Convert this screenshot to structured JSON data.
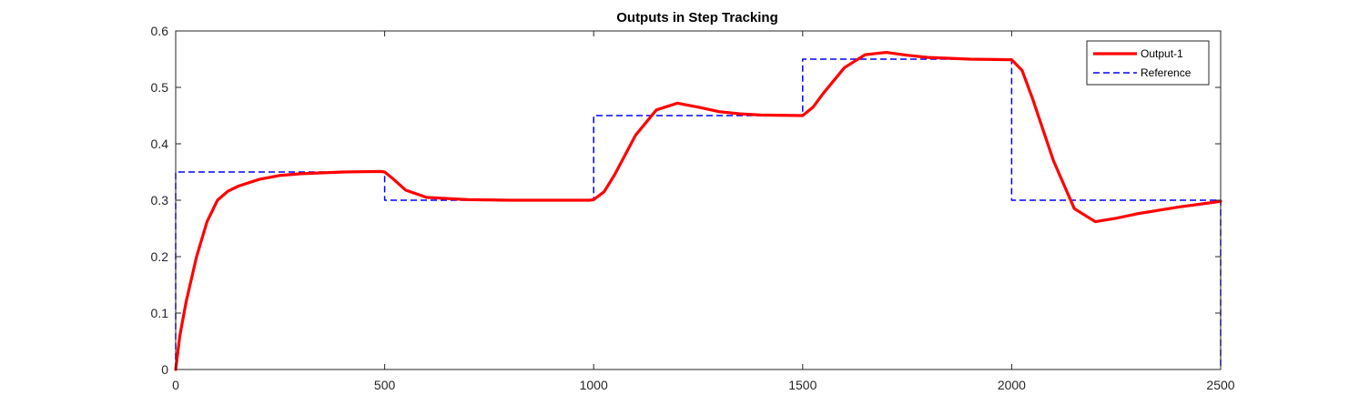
{
  "chart_data": {
    "type": "line",
    "title": "Outputs in Step Tracking",
    "xlabel": "",
    "ylabel": "",
    "xlim": [
      0,
      2500
    ],
    "ylim": [
      0,
      0.6
    ],
    "xticks": [
      0,
      500,
      1000,
      1500,
      2000,
      2500
    ],
    "xtick_labels": [
      "0",
      "500",
      "1000",
      "1500",
      "2000",
      "2500"
    ],
    "yticks": [
      0,
      0.1,
      0.2,
      0.3,
      0.4,
      0.5,
      0.6
    ],
    "ytick_labels": [
      "0",
      "0.1",
      "0.2",
      "0.3",
      "0.4",
      "0.5",
      "0.6"
    ],
    "grid": false,
    "legend_position": "top-right",
    "series": [
      {
        "name": "Output-1",
        "color": "#ff0000",
        "style": "solid",
        "x": [
          0,
          10,
          25,
          50,
          75,
          100,
          125,
          150,
          200,
          250,
          300,
          400,
          490,
          500,
          520,
          550,
          600,
          700,
          800,
          900,
          990,
          1000,
          1025,
          1050,
          1100,
          1150,
          1200,
          1250,
          1300,
          1350,
          1400,
          1500,
          1525,
          1550,
          1600,
          1650,
          1700,
          1750,
          1800,
          1900,
          2000,
          2025,
          2050,
          2100,
          2150,
          2200,
          2250,
          2300,
          2400,
          2500
        ],
        "y": [
          0,
          0.06,
          0.12,
          0.2,
          0.262,
          0.3,
          0.316,
          0.325,
          0.337,
          0.344,
          0.347,
          0.35,
          0.351,
          0.35,
          0.338,
          0.318,
          0.305,
          0.301,
          0.3,
          0.3,
          0.3,
          0.301,
          0.315,
          0.345,
          0.415,
          0.46,
          0.472,
          0.465,
          0.457,
          0.453,
          0.451,
          0.45,
          0.465,
          0.49,
          0.535,
          0.558,
          0.562,
          0.557,
          0.553,
          0.55,
          0.549,
          0.53,
          0.48,
          0.37,
          0.285,
          0.262,
          0.268,
          0.276,
          0.288,
          0.298
        ]
      },
      {
        "name": "Reference",
        "color": "#0000ff",
        "style": "dashed",
        "x": [
          0,
          0,
          500,
          500,
          1000,
          1000,
          1500,
          1500,
          2000,
          2000,
          2500,
          2500
        ],
        "y": [
          0,
          0.35,
          0.35,
          0.3,
          0.3,
          0.45,
          0.45,
          0.55,
          0.55,
          0.3,
          0.3,
          0
        ]
      }
    ]
  }
}
